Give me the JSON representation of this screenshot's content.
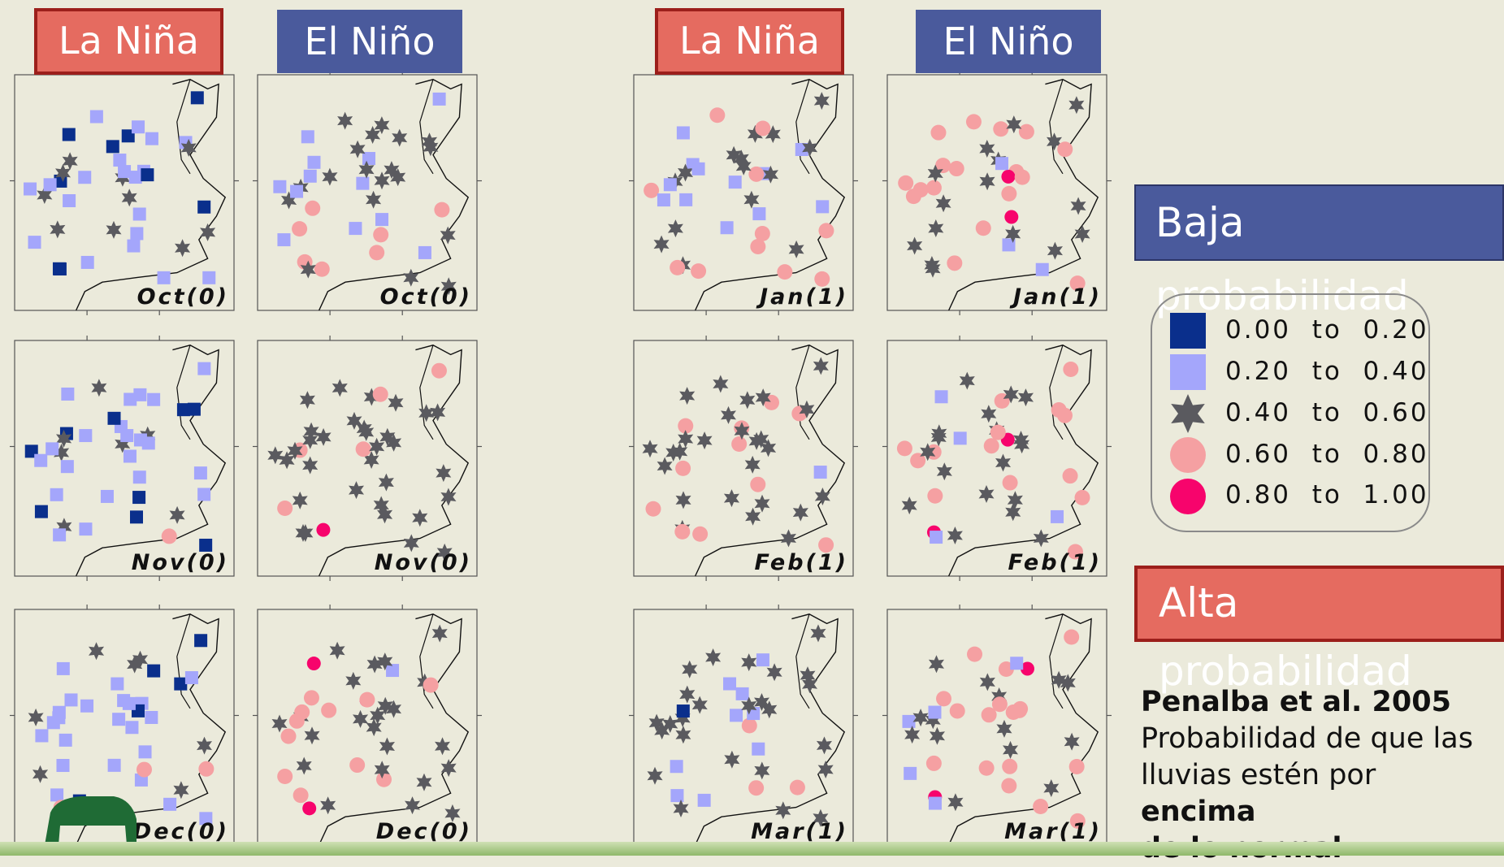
{
  "titles": {
    "nina_left": "La Niña",
    "nino_left": "El Niño",
    "nina_right": "La Niña",
    "nino_right": "El Niño",
    "baja": "Baja probabilidad",
    "alta": "Alta probabilidad"
  },
  "legend": [
    {
      "label": "0.00  to  0.20",
      "symbol": "square",
      "color": "#0a2f8c"
    },
    {
      "label": "0.20  to  0.40",
      "symbol": "square",
      "color": "#a4a6fb"
    },
    {
      "label": "0.40  to  0.60",
      "symbol": "star",
      "color": "#5a5a5f"
    },
    {
      "label": "0.60  to  0.80",
      "symbol": "circle",
      "color": "#f5a0a2"
    },
    {
      "label": "0.80  to  1.00",
      "symbol": "circle",
      "color": "#f7046c"
    }
  ],
  "citation": {
    "authors": "Penalba et al. 2005",
    "text_start": "Probabilidad de que las lluvias estén por ",
    "emph_1": "encima",
    "emph_2": "de lo normal"
  },
  "maps": [
    {
      "label": "Oct(0)",
      "group": "La Niña",
      "col": 0,
      "row": 0
    },
    {
      "label": "Oct(0)",
      "group": "El Niño",
      "col": 1,
      "row": 0
    },
    {
      "label": "Nov(0)",
      "group": "La Niña",
      "col": 0,
      "row": 1
    },
    {
      "label": "Nov(0)",
      "group": "El Niño",
      "col": 1,
      "row": 1
    },
    {
      "label": "Dec(0)",
      "group": "La Niña",
      "col": 0,
      "row": 2
    },
    {
      "label": "Dec(0)",
      "group": "El Niño",
      "col": 1,
      "row": 2
    },
    {
      "label": "Jan(1)",
      "group": "La Niña",
      "col": 2,
      "row": 0
    },
    {
      "label": "Jan(1)",
      "group": "El Niño",
      "col": 3,
      "row": 0
    },
    {
      "label": "Feb(1)",
      "group": "La Niña",
      "col": 2,
      "row": 1
    },
    {
      "label": "Feb(1)",
      "group": "El Niño",
      "col": 3,
      "row": 1
    },
    {
      "label": "Mar(1)",
      "group": "La Niña",
      "col": 2,
      "row": 2
    },
    {
      "label": "Mar(1)",
      "group": "El Niño",
      "col": 3,
      "row": 2
    }
  ]
}
